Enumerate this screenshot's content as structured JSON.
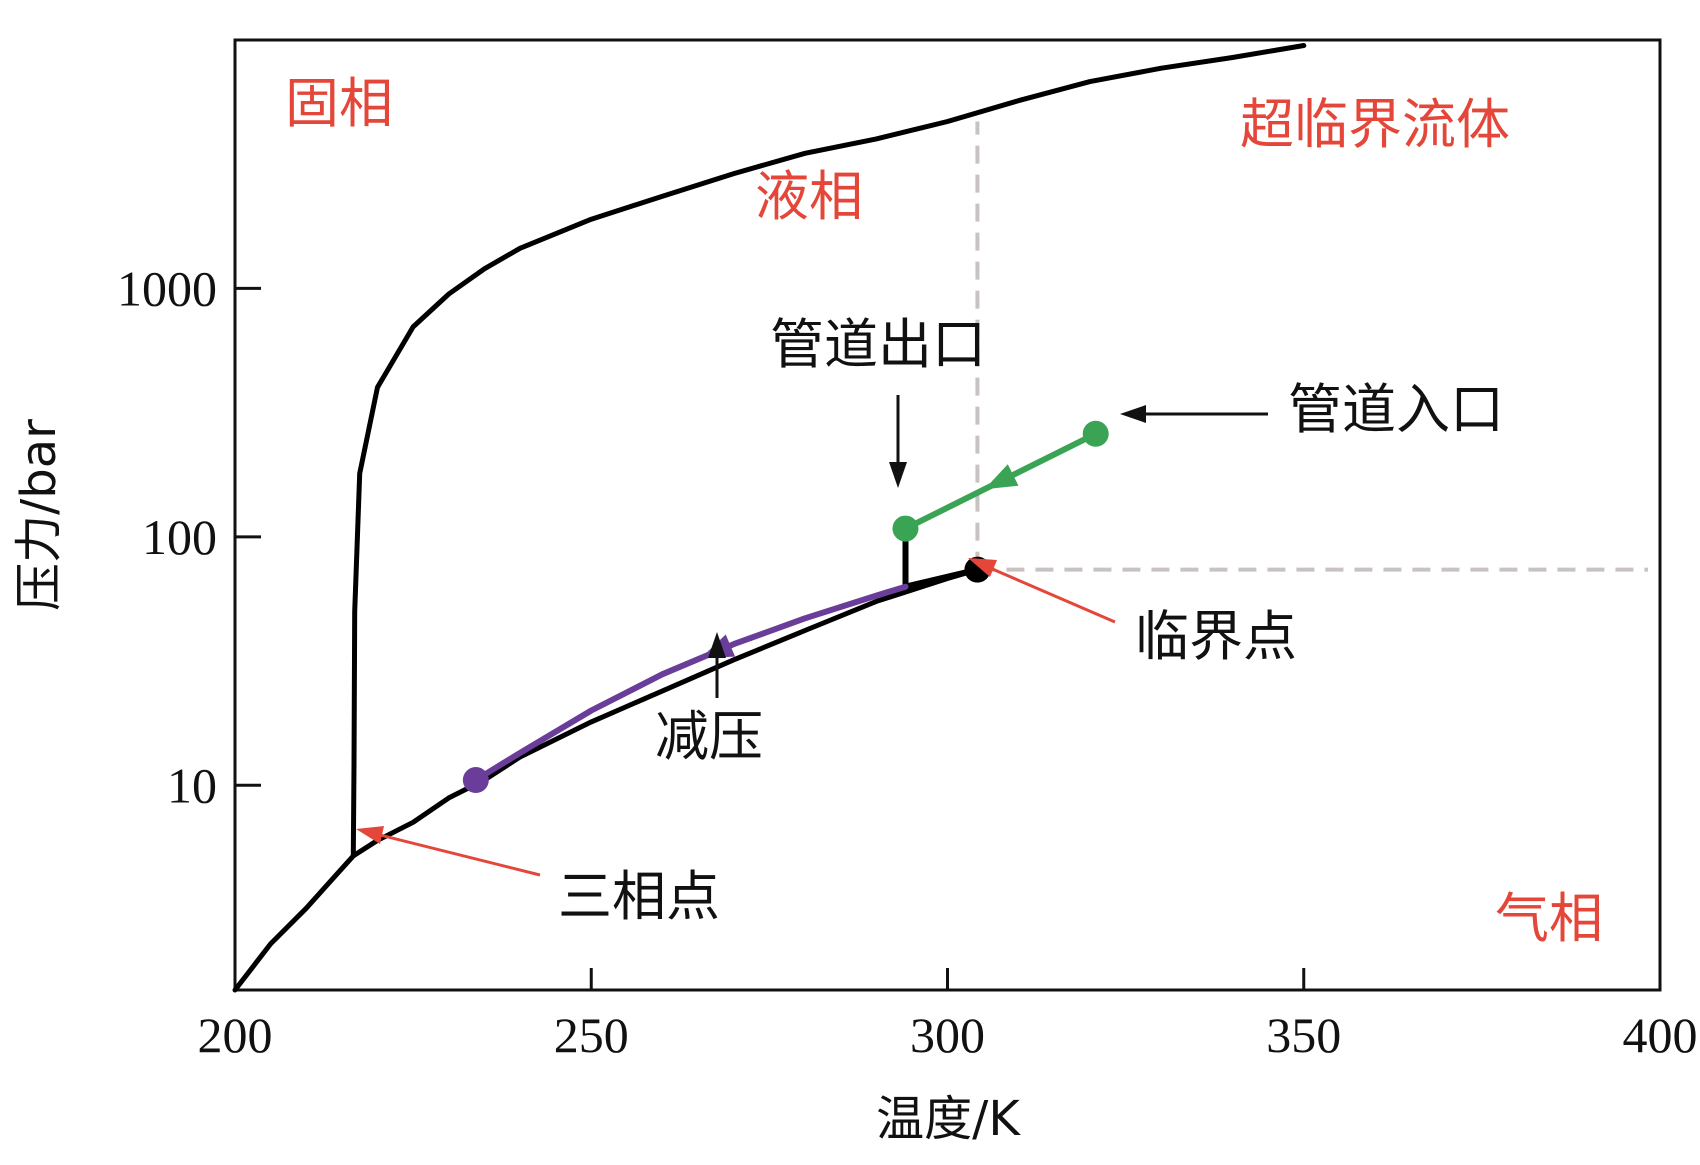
{
  "chart_data": {
    "type": "line",
    "xlabel": "温度/K",
    "ylabel": "压力/bar",
    "xlim": [
      200,
      400
    ],
    "ylim": [
      1.5,
      10000
    ],
    "yscale": "log",
    "xticks": [
      "200",
      "250",
      "300",
      "350",
      "400"
    ],
    "yticks": [
      {
        "value": 10,
        "label": "10"
      },
      {
        "value": 100,
        "label": "100"
      },
      {
        "value": 1000,
        "label": "1000"
      }
    ],
    "phase_boundaries": [
      {
        "name": "sublimation",
        "color": "#000000",
        "x": [
          200,
          205,
          210,
          214,
          216.6
        ],
        "y": [
          1.5,
          2.3,
          3.2,
          4.3,
          5.2
        ]
      },
      {
        "name": "vaporization",
        "color": "#000000",
        "x": [
          216.6,
          220,
          225,
          230,
          235,
          240,
          250,
          260,
          270,
          280,
          290,
          300,
          304.2
        ],
        "y": [
          5.2,
          6.0,
          7.1,
          8.9,
          10.5,
          13,
          18,
          24,
          32,
          42,
          55,
          68,
          73.8
        ]
      },
      {
        "name": "melting",
        "color": "#000000",
        "x": [
          216.6,
          216.7,
          216.8,
          217.5,
          220,
          225,
          230,
          235,
          240,
          250,
          260,
          270,
          280,
          290,
          300,
          310,
          320,
          330,
          340,
          350
        ],
        "y": [
          5.2,
          12,
          50,
          180,
          400,
          700,
          950,
          1200,
          1450,
          1900,
          2350,
          2900,
          3500,
          4000,
          4700,
          5700,
          6800,
          7700,
          8500,
          9500
        ]
      }
    ],
    "critical_lines": {
      "color": "#c8c2c2",
      "x": 304.2,
      "y": 73.8,
      "x_extends_to": 400,
      "y_extends_to": 4700
    },
    "series": [
      {
        "name": "",
        "color": "#3aa454",
        "arrow_at": 0.5,
        "x": [
          320.8,
          294.1
        ],
        "y": [
          260,
          108
        ]
      },
      {
        "name": "",
        "color": "#000000",
        "x": [
          294.1,
          294.1,
          304.2
        ],
        "y": [
          108,
          63,
          73.8
        ]
      },
      {
        "name": "",
        "color": "#6a3d9a",
        "arrow_at": 0.42,
        "x": [
          294.1,
          290,
          280,
          270,
          260,
          250,
          240,
          233.8
        ],
        "y": [
          63,
          58,
          47,
          37,
          28,
          20,
          13.5,
          10.5
        ]
      }
    ],
    "points": [
      {
        "x": 320.8,
        "y": 260,
        "color": "#3aa454"
      },
      {
        "x": 294.1,
        "y": 108,
        "color": "#3aa454"
      },
      {
        "x": 304.2,
        "y": 73.8,
        "color": "#000000"
      },
      {
        "x": 233.8,
        "y": 10.5,
        "color": "#6a3d9a"
      }
    ],
    "regions": [
      "固相",
      "液相",
      "超临界流体",
      "气相"
    ],
    "annotations": {
      "pipe_outlet": "管道出口",
      "pipe_inlet": "管道入口",
      "critical_point": "临界点",
      "decompression": "减压",
      "triple_point": "三相点"
    },
    "annotation_colors": {
      "red": "#e4473a",
      "black": "#111111"
    }
  }
}
